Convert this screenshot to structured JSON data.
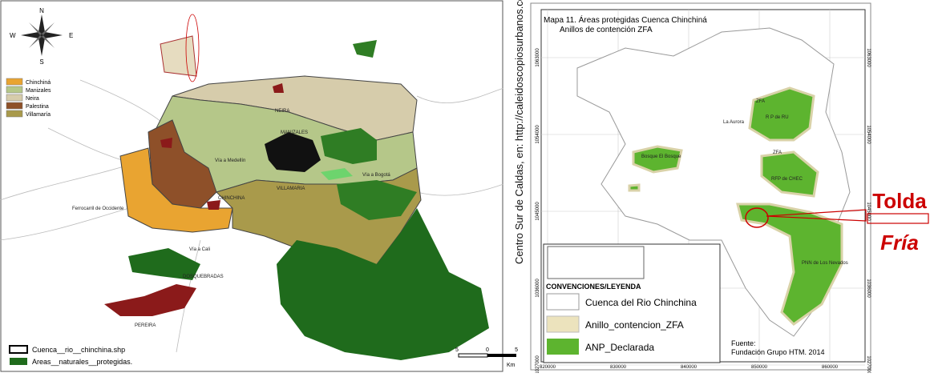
{
  "left_map": {
    "compass": {
      "n": "N",
      "e": "E",
      "s": "S",
      "w": "W"
    },
    "legend": [
      "Chinchiná",
      "Manizales",
      "Neira",
      "Palestina",
      "Villamaría"
    ],
    "places": {
      "neira": "NEIRA",
      "manizales": "MANIZALES",
      "via_medellin": "Vía a Medellín",
      "via_bogota": "Vía a Bogotá",
      "villamaria": "VILLAMARIA",
      "chinchina": "CHINCHINA",
      "ferrocarril": "Ferrocarril de Occidente",
      "via_cali": "Vía a Cali",
      "dosquebradas": "DOSQUEBRADAS",
      "pereira": "PEREIRA"
    },
    "bottom_legend": [
      "Cuenca__rio__chinchina.shp",
      "Areas__naturales__protegidas."
    ],
    "scale": {
      "left": "5",
      "middle": "0",
      "right": "5",
      "unit": "Km"
    }
  },
  "caption": "Centro Sur de Caldas, en: http://caleidoscopiosurbanos.com",
  "right_map": {
    "title": "Mapa 11. Áreas protegidas Cuenca Chinchiná",
    "subtitle": "Anillos de contención ZFA",
    "labels": {
      "zfa_top": "ZFA",
      "aurora": "La Aurora",
      "rpru": "R P de RU",
      "zfa_mid": "ZFA",
      "bosque": "Bosque El Bosque",
      "chec": "RFP de CHEC",
      "nevados": "PNN de Los Nevados"
    },
    "legend_title": "CONVENCIONES/LEYENDA",
    "legend": [
      "Cuenca del Rio Chinchina",
      "Anillo_contencion_ZFA",
      "ANP_Declarada"
    ],
    "source": [
      "Fuente:",
      "Fundación Grupo HTM. 2014"
    ],
    "x_coords": [
      "820000",
      "830000",
      "840000",
      "850000",
      "860000"
    ],
    "y_coords": [
      "1063000",
      "1054000",
      "1045000",
      "1036000",
      "1027000"
    ]
  },
  "annotation": {
    "line1": "Tolda",
    "line2": "Fría"
  }
}
